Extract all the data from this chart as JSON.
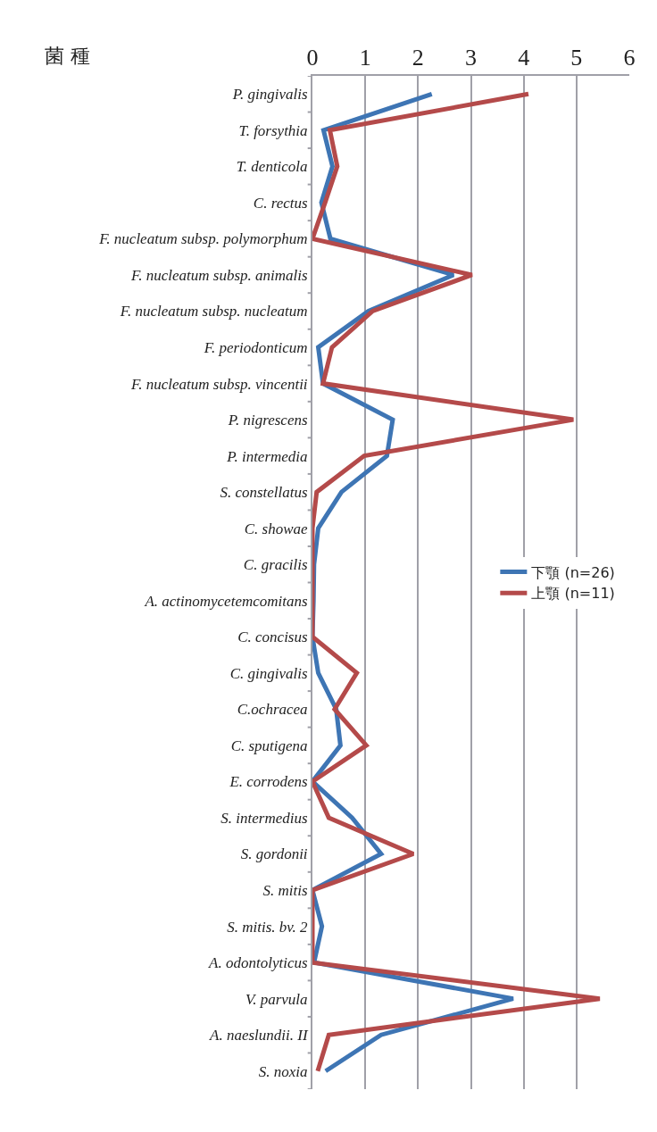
{
  "chart_data": {
    "type": "line",
    "orientation": "horizontal",
    "ylabel": "菌 種",
    "categories": [
      "P. gingivalis",
      "T. forsythia",
      "T. denticola",
      "C. rectus",
      "F. nucleatum subsp. polymorphum",
      "F. nucleatum subsp. animalis",
      "F. nucleatum subsp. nucleatum",
      "F. periodonticum",
      "F. nucleatum subsp. vincentii",
      "P. nigrescens",
      "P. intermedia",
      "S. constellatus",
      "C. showae",
      "C. gracilis",
      "A. actinomycetemcomitans",
      "C. concisus",
      "C. gingivalis",
      "C.ochracea",
      "C. sputigena",
      "E. corrodens",
      "S. intermedius",
      "S. gordonii",
      "S. mitis",
      "S. mitis. bv. 2",
      "A. odontolyticus",
      "V. parvula",
      "A. naeslundii. II",
      "S. noxia"
    ],
    "series": [
      {
        "name": "下顎 (n=26)",
        "color": "#3e75b4",
        "values": [
          2.26,
          0.21,
          0.38,
          0.17,
          0.34,
          2.67,
          1.06,
          0.11,
          0.2,
          1.52,
          1.41,
          0.55,
          0.11,
          0.03,
          0.02,
          0,
          0.11,
          0.45,
          0.53,
          0,
          0.75,
          1.3,
          0,
          0.18,
          0.03,
          3.8,
          1.3,
          0.25
        ]
      },
      {
        "name": "上顎 (n=11)",
        "color": "#b44a4a",
        "values": [
          4.09,
          0.33,
          0.47,
          0.24,
          0,
          3.02,
          1.14,
          0.37,
          0.2,
          4.94,
          0.98,
          0.08,
          0,
          0,
          0,
          0,
          0.84,
          0.42,
          1.02,
          0,
          0.31,
          1.91,
          0,
          0,
          0,
          5.44,
          0.31,
          0.1
        ]
      }
    ],
    "xlim": [
      0,
      6
    ],
    "xticks": [
      0,
      1,
      2,
      3,
      4,
      5,
      6
    ],
    "grid": "x",
    "legend": "right",
    "marker": "none",
    "line_style": "solid"
  }
}
